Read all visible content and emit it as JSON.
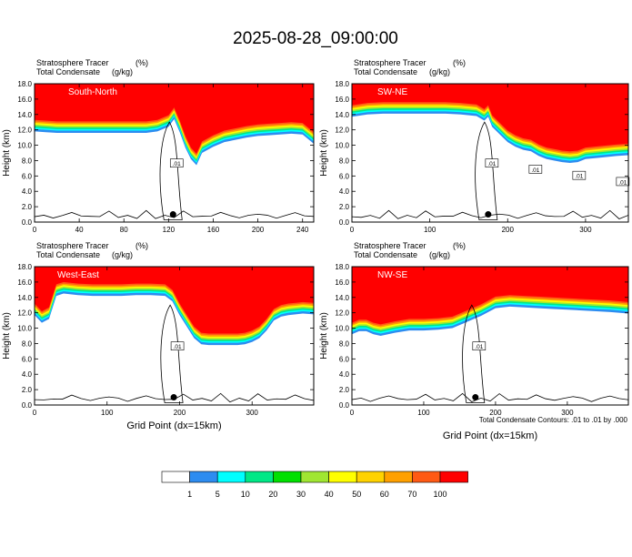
{
  "title": "2025-08-28_09:00:00",
  "footnote": "Total Condensate Contours: .01 to .01 by .000",
  "colorbar": {
    "labels": [
      "1",
      "5",
      "10",
      "20",
      "30",
      "40",
      "50",
      "60",
      "70",
      "100"
    ],
    "colors": [
      "#ffffff",
      "#2d8cf0",
      "#00ffff",
      "#00e886",
      "#00e000",
      "#a0e632",
      "#ffff00",
      "#ffd200",
      "#ffa000",
      "#ff5a14",
      "#ff0000"
    ]
  },
  "chart_data": [
    {
      "type": "heatmap",
      "panel_label": "South-North",
      "line1_left": "Stratosphere Tracer",
      "line1_right": "(%)",
      "line2_left": "Total Condensate",
      "line2_right": "(g/kg)",
      "xlabel": "",
      "ylabel": "Height (km)",
      "xlim": [
        0,
        250
      ],
      "ylim": [
        0,
        18
      ],
      "xticks": [
        0,
        40,
        80,
        120,
        160,
        200,
        240
      ],
      "yticks": [
        0,
        2,
        4,
        6,
        8,
        10,
        12,
        14,
        16,
        18
      ],
      "contour_labels": [
        ".01"
      ],
      "marker": {
        "x": 124,
        "y": 1.0
      },
      "tropopause_profile": {
        "x": [
          0,
          10,
          20,
          30,
          40,
          50,
          60,
          70,
          80,
          90,
          100,
          110,
          120,
          125,
          130,
          135,
          140,
          145,
          150,
          160,
          170,
          180,
          190,
          200,
          210,
          220,
          230,
          240,
          250
        ],
        "y": [
          12.6,
          12.5,
          12.4,
          12.4,
          12.4,
          12.4,
          12.4,
          12.4,
          12.4,
          12.4,
          12.4,
          12.6,
          13.2,
          14.2,
          12.5,
          10.5,
          9.0,
          8.2,
          9.8,
          10.6,
          11.2,
          11.5,
          11.8,
          12.0,
          12.1,
          12.2,
          12.3,
          12.2,
          11.0
        ]
      }
    },
    {
      "type": "heatmap",
      "panel_label": "SW-NE",
      "line1_left": "Stratosphere Tracer",
      "line1_right": "(%)",
      "line2_left": "Total Condensate",
      "line2_right": "(g/kg)",
      "xlabel": "",
      "ylabel": "Height (km)",
      "xlim": [
        0,
        355
      ],
      "ylim": [
        0,
        18
      ],
      "xticks": [
        0,
        100,
        200,
        300
      ],
      "yticks": [
        0,
        2,
        4,
        6,
        8,
        10,
        12,
        14,
        16,
        18
      ],
      "contour_labels": [
        ".01",
        ".01",
        ".01",
        ".01"
      ],
      "marker": {
        "x": 175,
        "y": 1.0
      },
      "tropopause_profile": {
        "x": [
          0,
          20,
          40,
          60,
          80,
          100,
          120,
          140,
          160,
          170,
          175,
          180,
          190,
          200,
          210,
          220,
          230,
          240,
          250,
          260,
          270,
          280,
          290,
          300,
          320,
          340,
          355
        ],
        "y": [
          14.5,
          14.8,
          14.9,
          14.9,
          14.9,
          14.9,
          14.9,
          14.8,
          14.6,
          14.0,
          14.5,
          13.2,
          12.2,
          11.2,
          10.6,
          10.2,
          10.0,
          9.4,
          9.0,
          8.8,
          8.6,
          8.5,
          8.6,
          9.0,
          9.2,
          9.4,
          9.5
        ]
      }
    },
    {
      "type": "heatmap",
      "panel_label": "West-East",
      "line1_left": "Stratosphere Tracer",
      "line1_right": "(%)",
      "line2_left": "Total Condensate",
      "line2_right": "(g/kg)",
      "xlabel": "Grid Point (dx=15km)",
      "ylabel": "Height (km)",
      "xlim": [
        0,
        385
      ],
      "ylim": [
        0,
        18
      ],
      "xticks": [
        0,
        100,
        200,
        300
      ],
      "yticks": [
        0,
        2,
        4,
        6,
        8,
        10,
        12,
        14,
        16,
        18
      ],
      "contour_labels": [
        ".01"
      ],
      "marker": {
        "x": 192,
        "y": 1.0
      },
      "tropopause_profile": {
        "x": [
          0,
          10,
          20,
          30,
          40,
          60,
          80,
          100,
          120,
          140,
          160,
          180,
          190,
          200,
          210,
          220,
          230,
          240,
          250,
          260,
          270,
          280,
          290,
          300,
          310,
          320,
          330,
          340,
          350,
          360,
          370,
          385
        ],
        "y": [
          12.5,
          11.5,
          12.0,
          15.0,
          15.3,
          15.1,
          15.0,
          15.0,
          15.0,
          15.1,
          15.1,
          15.0,
          14.3,
          12.5,
          11.0,
          9.5,
          8.7,
          8.6,
          8.6,
          8.6,
          8.6,
          8.6,
          8.7,
          9.0,
          9.5,
          10.5,
          11.8,
          12.3,
          12.5,
          12.6,
          12.7,
          12.6
        ]
      }
    },
    {
      "type": "heatmap",
      "panel_label": "NW-SE",
      "line1_left": "Stratosphere Tracer",
      "line1_right": "(%)",
      "line2_left": "Total Condensate",
      "line2_right": "(g/kg)",
      "xlabel": "Grid Point (dx=15km)",
      "ylabel": "Height (km)",
      "xlim": [
        0,
        385
      ],
      "ylim": [
        0,
        18
      ],
      "xticks": [
        0,
        100,
        200,
        300
      ],
      "yticks": [
        0,
        2,
        4,
        6,
        8,
        10,
        12,
        14,
        16,
        18
      ],
      "contour_labels": [
        ".01"
      ],
      "marker": {
        "x": 172,
        "y": 1.0
      },
      "tropopause_profile": {
        "x": [
          0,
          10,
          20,
          30,
          40,
          60,
          80,
          100,
          120,
          140,
          160,
          180,
          200,
          220,
          240,
          260,
          280,
          300,
          320,
          340,
          360,
          385
        ],
        "y": [
          10.0,
          10.4,
          10.4,
          10.0,
          9.8,
          10.2,
          10.5,
          10.5,
          10.6,
          10.8,
          11.6,
          12.4,
          13.4,
          13.6,
          13.5,
          13.4,
          13.3,
          13.2,
          13.1,
          13.0,
          12.9,
          12.7
        ]
      }
    }
  ]
}
